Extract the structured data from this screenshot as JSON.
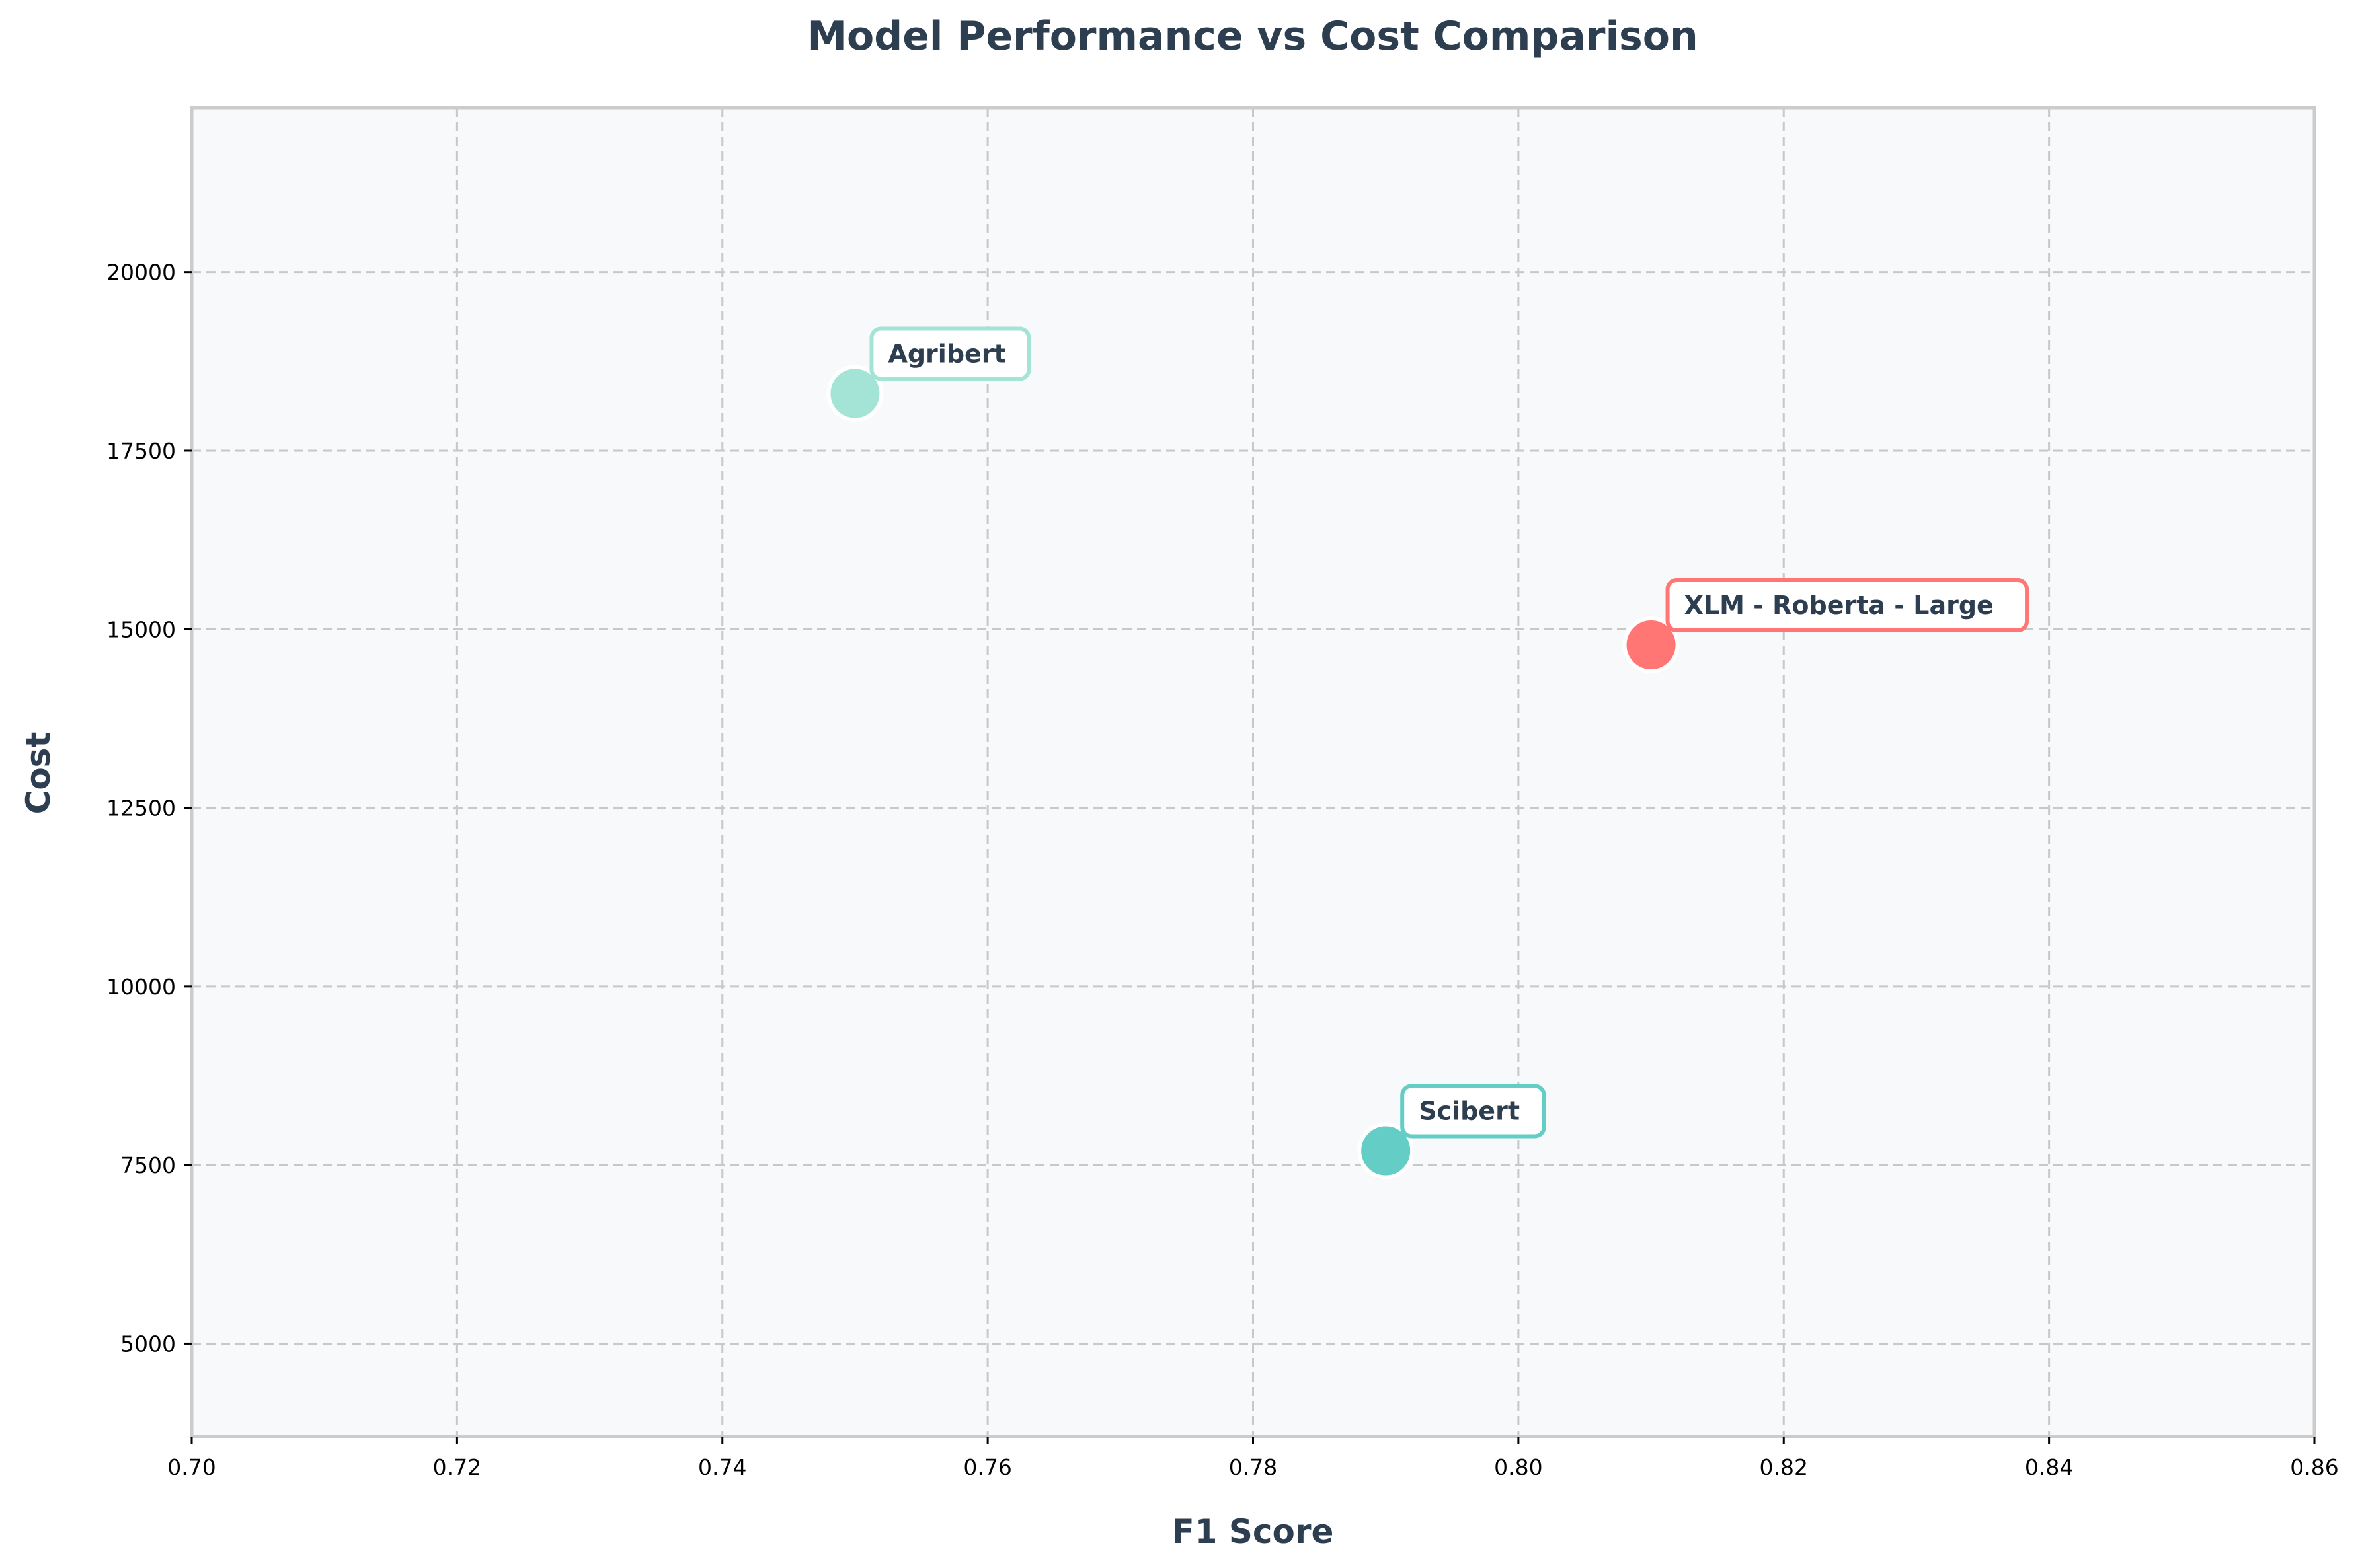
{
  "chart_data": {
    "type": "scatter",
    "title": "Model Performance vs Cost Comparison",
    "xlabel": "F1 Score",
    "ylabel": "Cost",
    "xlim": [
      0.7,
      0.86
    ],
    "ylim": [
      3700,
      22300
    ],
    "x_ticks": [
      "0.70",
      "0.72",
      "0.74",
      "0.76",
      "0.78",
      "0.80",
      "0.82",
      "0.84",
      "0.86"
    ],
    "y_ticks": [
      "5000",
      "7500",
      "10000",
      "12500",
      "15000",
      "17500",
      "20000"
    ],
    "grid": true,
    "points": [
      {
        "label": "Agribert",
        "x": 0.75,
        "y": 18300,
        "color": "#a3e4d7"
      },
      {
        "label": "XLM - Roberta - Large",
        "x": 0.81,
        "y": 14780,
        "color": "#ff7675"
      },
      {
        "label": "Scibert",
        "x": 0.79,
        "y": 7700,
        "color": "#63cdc6"
      }
    ]
  },
  "colors": {
    "plot_background": "#f8f9fa",
    "frame": "#cccccc",
    "text": "#2c3e50"
  }
}
